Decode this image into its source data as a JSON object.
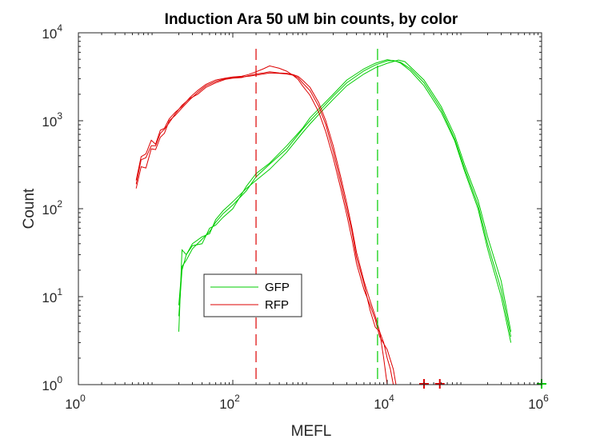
{
  "chart_data": {
    "type": "line",
    "title": "Induction Ara   50 uM bin counts, by color",
    "xlabel": "MEFL",
    "ylabel": "Count",
    "xscale": "log",
    "yscale": "log",
    "xlim": [
      1,
      1000000
    ],
    "ylim": [
      1,
      10000
    ],
    "x_ticks": [
      {
        "value": 1,
        "base": "10",
        "exp": "0"
      },
      {
        "value": 100,
        "base": "10",
        "exp": "2"
      },
      {
        "value": 10000,
        "base": "10",
        "exp": "4"
      },
      {
        "value": 1000000,
        "base": "10",
        "exp": "6"
      }
    ],
    "y_ticks": [
      {
        "value": 1,
        "base": "10",
        "exp": "0"
      },
      {
        "value": 10,
        "base": "10",
        "exp": "1"
      },
      {
        "value": 100,
        "base": "10",
        "exp": "2"
      },
      {
        "value": 1000,
        "base": "10",
        "exp": "3"
      },
      {
        "value": 10000,
        "base": "10",
        "exp": "4"
      }
    ],
    "grid": false,
    "legend_position": "lower-left",
    "legend": [
      {
        "label": "GFP",
        "color": "#00cc00"
      },
      {
        "label": "RFP",
        "color": "#dd0000"
      }
    ],
    "series": [
      {
        "color": "#00cc00",
        "legend": "GFP",
        "points": [
          [
            20,
            8
          ],
          [
            22,
            22
          ],
          [
            25,
            26
          ],
          [
            30,
            35
          ],
          [
            40,
            45
          ],
          [
            50,
            55
          ],
          [
            60,
            70
          ],
          [
            75,
            88
          ],
          [
            100,
            110
          ],
          [
            150,
            160
          ],
          [
            200,
            230
          ],
          [
            300,
            320
          ],
          [
            500,
            480
          ],
          [
            800,
            800
          ],
          [
            1000,
            1000
          ],
          [
            1500,
            1450
          ],
          [
            2000,
            1900
          ],
          [
            3000,
            2700
          ],
          [
            5000,
            3700
          ],
          [
            7000,
            4300
          ],
          [
            10000,
            4800
          ],
          [
            12000,
            4850
          ],
          [
            15000,
            4600
          ],
          [
            20000,
            3900
          ],
          [
            30000,
            2700
          ],
          [
            50000,
            1350
          ],
          [
            75000,
            620
          ],
          [
            100000,
            290
          ],
          [
            150000,
            110
          ],
          [
            200000,
            40
          ],
          [
            300000,
            12
          ],
          [
            400000,
            3.5
          ]
        ]
      },
      {
        "color": "#00cc00",
        "legend": "GFP",
        "points": [
          [
            20,
            6
          ],
          [
            22,
            20
          ],
          [
            25,
            30
          ],
          [
            30,
            38
          ],
          [
            40,
            40
          ],
          [
            50,
            60
          ],
          [
            60,
            65
          ],
          [
            75,
            80
          ],
          [
            100,
            100
          ],
          [
            150,
            180
          ],
          [
            200,
            250
          ],
          [
            300,
            330
          ],
          [
            500,
            520
          ],
          [
            800,
            820
          ],
          [
            1000,
            1080
          ],
          [
            1500,
            1550
          ],
          [
            2000,
            2000
          ],
          [
            3000,
            2900
          ],
          [
            5000,
            3900
          ],
          [
            7000,
            4500
          ],
          [
            10000,
            4950
          ],
          [
            13000,
            4750
          ],
          [
            15000,
            4500
          ],
          [
            20000,
            3700
          ],
          [
            30000,
            2500
          ],
          [
            50000,
            1250
          ],
          [
            75000,
            590
          ],
          [
            100000,
            270
          ],
          [
            150000,
            100
          ],
          [
            200000,
            35
          ],
          [
            300000,
            10
          ],
          [
            400000,
            3
          ]
        ]
      },
      {
        "color": "#00cc00",
        "legend": "GFP",
        "points": [
          [
            20,
            4
          ],
          [
            22,
            34
          ],
          [
            25,
            30
          ],
          [
            30,
            40
          ],
          [
            40,
            48
          ],
          [
            50,
            52
          ],
          [
            60,
            75
          ],
          [
            75,
            95
          ],
          [
            100,
            120
          ],
          [
            150,
            170
          ],
          [
            200,
            210
          ],
          [
            300,
            280
          ],
          [
            500,
            440
          ],
          [
            800,
            730
          ],
          [
            1000,
            920
          ],
          [
            1500,
            1350
          ],
          [
            2000,
            1750
          ],
          [
            3000,
            2500
          ],
          [
            5000,
            3400
          ],
          [
            7000,
            4000
          ],
          [
            10000,
            4500
          ],
          [
            14000,
            4900
          ],
          [
            17000,
            4700
          ],
          [
            20000,
            4100
          ],
          [
            30000,
            2900
          ],
          [
            50000,
            1450
          ],
          [
            75000,
            680
          ],
          [
            100000,
            320
          ],
          [
            150000,
            125
          ],
          [
            200000,
            48
          ],
          [
            300000,
            15
          ],
          [
            400000,
            4
          ]
        ]
      },
      {
        "color": "#dd0000",
        "legend": "RFP",
        "points": [
          [
            5.6,
            170
          ],
          [
            6.5,
            300
          ],
          [
            7.5,
            290
          ],
          [
            8.8,
            480
          ],
          [
            10,
            470
          ],
          [
            11.5,
            650
          ],
          [
            13,
            720
          ],
          [
            15,
            1000
          ],
          [
            18,
            1150
          ],
          [
            22,
            1400
          ],
          [
            28,
            1750
          ],
          [
            35,
            2100
          ],
          [
            45,
            2500
          ],
          [
            60,
            2800
          ],
          [
            80,
            3000
          ],
          [
            100,
            3100
          ],
          [
            130,
            3150
          ],
          [
            160,
            3200
          ],
          [
            200,
            3300
          ],
          [
            250,
            3400
          ],
          [
            300,
            3500
          ],
          [
            400,
            3450
          ],
          [
            500,
            3400
          ],
          [
            600,
            3300
          ],
          [
            700,
            3100
          ],
          [
            800,
            2700
          ],
          [
            1000,
            2200
          ],
          [
            1300,
            1450
          ],
          [
            1600,
            900
          ],
          [
            2000,
            450
          ],
          [
            2500,
            200
          ],
          [
            3000,
            100
          ],
          [
            3500,
            55
          ],
          [
            4000,
            28
          ],
          [
            5000,
            14
          ],
          [
            6000,
            7
          ],
          [
            7000,
            4.5
          ],
          [
            8000,
            4
          ],
          [
            9000,
            2
          ],
          [
            10000,
            1
          ]
        ]
      },
      {
        "color": "#dd0000",
        "legend": "RFP",
        "points": [
          [
            5.6,
            210
          ],
          [
            6.5,
            390
          ],
          [
            7.5,
            420
          ],
          [
            8.8,
            600
          ],
          [
            10,
            540
          ],
          [
            11.5,
            780
          ],
          [
            13,
            820
          ],
          [
            15,
            1050
          ],
          [
            18,
            1250
          ],
          [
            22,
            1450
          ],
          [
            28,
            1850
          ],
          [
            35,
            2200
          ],
          [
            45,
            2600
          ],
          [
            60,
            2900
          ],
          [
            80,
            3050
          ],
          [
            100,
            3150
          ],
          [
            130,
            3200
          ],
          [
            160,
            3350
          ],
          [
            200,
            3600
          ],
          [
            250,
            3900
          ],
          [
            300,
            4200
          ],
          [
            400,
            3950
          ],
          [
            500,
            3650
          ],
          [
            600,
            3300
          ],
          [
            700,
            2950
          ],
          [
            800,
            2500
          ],
          [
            1000,
            1950
          ],
          [
            1300,
            1250
          ],
          [
            1600,
            750
          ],
          [
            2000,
            380
          ],
          [
            2500,
            170
          ],
          [
            3000,
            85
          ],
          [
            3500,
            45
          ],
          [
            4000,
            24
          ],
          [
            5000,
            12
          ],
          [
            6000,
            8
          ],
          [
            7000,
            5.5
          ],
          [
            8000,
            3.5
          ],
          [
            10000,
            2.5
          ],
          [
            12000,
            1.5
          ],
          [
            13000,
            1
          ]
        ]
      },
      {
        "color": "#dd0000",
        "legend": "RFP",
        "points": [
          [
            5.6,
            190
          ],
          [
            6.5,
            360
          ],
          [
            7.5,
            380
          ],
          [
            8.8,
            520
          ],
          [
            10,
            520
          ],
          [
            11.5,
            720
          ],
          [
            13,
            800
          ],
          [
            15,
            950
          ],
          [
            18,
            1200
          ],
          [
            22,
            1500
          ],
          [
            28,
            1800
          ],
          [
            35,
            2000
          ],
          [
            45,
            2400
          ],
          [
            60,
            2700
          ],
          [
            80,
            2950
          ],
          [
            100,
            3050
          ],
          [
            130,
            3100
          ],
          [
            160,
            3250
          ],
          [
            200,
            3400
          ],
          [
            250,
            3500
          ],
          [
            300,
            3600
          ],
          [
            400,
            3500
          ],
          [
            500,
            3450
          ],
          [
            600,
            3350
          ],
          [
            700,
            3200
          ],
          [
            800,
            2900
          ],
          [
            1000,
            2400
          ],
          [
            1300,
            1600
          ],
          [
            1600,
            1000
          ],
          [
            2000,
            520
          ],
          [
            2500,
            230
          ],
          [
            3000,
            115
          ],
          [
            3500,
            60
          ],
          [
            4000,
            32
          ],
          [
            5000,
            15
          ],
          [
            6000,
            9
          ],
          [
            7000,
            6
          ],
          [
            8000,
            4
          ],
          [
            9000,
            3
          ],
          [
            10000,
            2
          ],
          [
            11000,
            1.5
          ],
          [
            12000,
            1
          ]
        ]
      }
    ],
    "vlines": [
      {
        "x": 200,
        "color": "#dd0000",
        "style": "dashed"
      },
      {
        "x": 7500,
        "color": "#00cc00",
        "style": "dashed"
      }
    ],
    "markers": [
      {
        "x": 30000,
        "y": 1,
        "color": "#dd0000",
        "symbol": "+"
      },
      {
        "x": 48000,
        "y": 1,
        "color": "#dd0000",
        "symbol": "+"
      },
      {
        "x": 1000000,
        "y": 1,
        "color": "#00cc00",
        "symbol": "+"
      }
    ]
  }
}
